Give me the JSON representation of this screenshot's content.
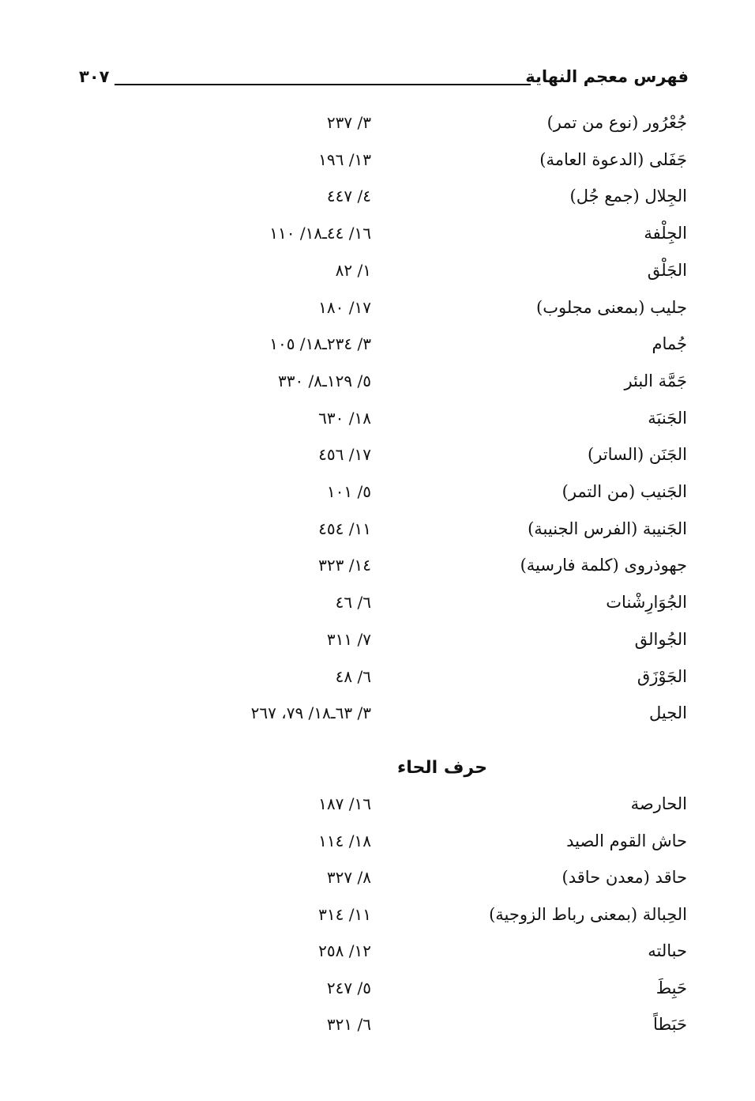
{
  "header": {
    "title": "فهرس معجم النهاية",
    "page_number": "٣٠٧"
  },
  "entries_a": [
    {
      "term": "جُعْرُور (نوع من تمر)",
      "ref": "٣/ ٢٣٧"
    },
    {
      "term": "جَفَلى (الدعوة العامة)",
      "ref": "١٣/ ١٩٦"
    },
    {
      "term": "الجِلال (جمع جُل)",
      "ref": "٤/ ٤٤٧"
    },
    {
      "term": "الجِلْفة",
      "ref": "١٦/ ٤٤ـ١٨/ ١١٠"
    },
    {
      "term": "الجَلْق",
      "ref": "١/ ٨٢"
    },
    {
      "term": "جليب (بمعنى مجلوب)",
      "ref": "١٧/ ١٨٠"
    },
    {
      "term": "جُمام",
      "ref": "٣/ ٢٣٤ـ١٨/ ١٠٥"
    },
    {
      "term": "جَمَّة البئر",
      "ref": "٥/ ١٢٩ـ٨/ ٣٣٠"
    },
    {
      "term": "الجَنبَة",
      "ref": "١٨/ ٦٣٠"
    },
    {
      "term": "الجَنَن (الساتر)",
      "ref": "١٧/ ٤٥٦"
    },
    {
      "term": "الجَنيب (من التمر)",
      "ref": "٥/ ١٠١"
    },
    {
      "term": "الجَنيبة (الفرس الجنيبة)",
      "ref": "١١/ ٤٥٤"
    },
    {
      "term": "جهوذروى (كلمة فارسية)",
      "ref": "١٤/ ٣٢٣"
    },
    {
      "term": "الجُوَارِشْنات",
      "ref": "٦/ ٤٦"
    },
    {
      "term": "الجُوالق",
      "ref": "٧/ ٣١١"
    },
    {
      "term": "الجَوْزَق",
      "ref": "٦/ ٤٨"
    },
    {
      "term": "الجيل",
      "ref": "٣/ ٦٣ـ١٨/ ٧٩، ٢٦٧"
    }
  ],
  "section_heading": "حرف الحاء",
  "entries_b": [
    {
      "term": "الحارصة",
      "ref": "١٦/ ١٨٧"
    },
    {
      "term": "حاش القوم الصيد",
      "ref": "١٨/ ١١٤"
    },
    {
      "term": "حاقد (معدن حاقد)",
      "ref": "٨/ ٣٢٧"
    },
    {
      "term": "الحِبالة (بمعنى رباط الزوجية)",
      "ref": "١١/ ٣١٤"
    },
    {
      "term": "حبالته",
      "ref": "١٢/ ٢٥٨"
    },
    {
      "term": "حَبِطَ",
      "ref": "٥/ ٢٤٧"
    },
    {
      "term": "حَبَطاً",
      "ref": "٦/ ٣٢١"
    }
  ]
}
